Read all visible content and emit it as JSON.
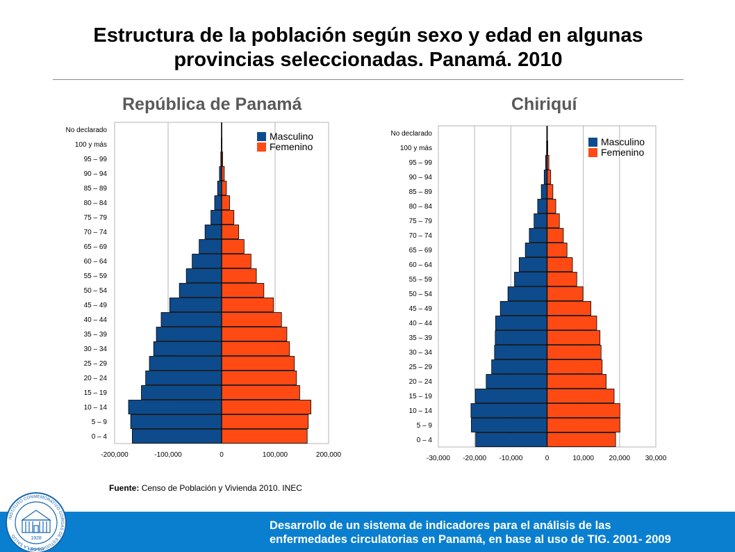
{
  "slide": {
    "title_line1": "Estructura de la población según sexo y edad en algunas",
    "title_line2": "provincias seleccionadas. Panamá. 2010"
  },
  "source": {
    "label": "Fuente:",
    "text": "Censo de Población y Vivienda  2010. INEC"
  },
  "footer": {
    "line1": "Desarrollo de un sistema de indicadores para el análisis de las",
    "line2": "enfermedades circulatorias en Panamá, en base al uso de TIG. 2001- 2009"
  },
  "logo": {
    "ring_text": "INSTITUTO CONMEMORATIVO GORGAS DE ESTUDIOS DE LA SALUD",
    "year": "1928",
    "place": "PANAMA"
  },
  "colors": {
    "male": "#0d4b8c",
    "female": "#ff4a14",
    "footer": "#0a7fd0",
    "chart_title": "#595959"
  },
  "chart_data": [
    {
      "type": "bar",
      "orientation": "horizontal",
      "title": "República de Panamá",
      "categories": [
        "No declarado",
        "100 y más",
        "95 – 99",
        "90 – 94",
        "85 – 89",
        "80 – 84",
        "75 – 79",
        "70 – 74",
        "65 – 69",
        "60 – 64",
        "55 – 59",
        "50 – 54",
        "45 – 49",
        "40 – 44",
        "35 – 39",
        "30 – 34",
        "25 – 29",
        "20 – 24",
        "15 – 19",
        "10 – 14",
        "5 – 9",
        "0 – 4"
      ],
      "series": [
        {
          "name": "Masculino",
          "values": [
            -500,
            -600,
            -1500,
            -4000,
            -7500,
            -13000,
            -20000,
            -31000,
            -42000,
            -55000,
            -66000,
            -79000,
            -97000,
            -113000,
            -122000,
            -127000,
            -135000,
            -142000,
            -150000,
            -174000,
            -170000,
            -167000
          ]
        },
        {
          "name": "Femenino",
          "values": [
            500,
            700,
            2000,
            5000,
            9000,
            15000,
            23000,
            32000,
            42000,
            55000,
            65000,
            79000,
            97000,
            112000,
            122000,
            127000,
            136000,
            140000,
            146000,
            167000,
            162000,
            160000
          ]
        }
      ],
      "xlim": [
        -200000,
        200000
      ],
      "xticks": [
        -200000,
        -100000,
        0,
        100000,
        200000
      ],
      "xtick_labels": [
        "-200,000",
        "-100,000",
        "0",
        "100,000",
        "200,000"
      ],
      "grid": true,
      "legend_position": "top-right"
    },
    {
      "type": "bar",
      "orientation": "horizontal",
      "title": "Chiriquí",
      "categories": [
        "No declarado",
        "100 y más",
        "95 – 99",
        "90 – 94",
        "85 – 89",
        "80 – 84",
        "75 – 79",
        "70 – 74",
        "65 – 69",
        "60 – 64",
        "55 – 59",
        "50 – 54",
        "45 – 49",
        "40 – 44",
        "35 – 39",
        "30 – 34",
        "25 – 29",
        "20 – 24",
        "15 – 19",
        "10 – 14",
        "5 – 9",
        "0 – 4"
      ],
      "series": [
        {
          "name": "Masculino",
          "values": [
            -100,
            -150,
            -400,
            -800,
            -1600,
            -2600,
            -3600,
            -4900,
            -6000,
            -7700,
            -9000,
            -10800,
            -12900,
            -14200,
            -14300,
            -14500,
            -15300,
            -16800,
            -19800,
            -21000,
            -20900,
            -19700
          ]
        },
        {
          "name": "Femenino",
          "values": [
            100,
            200,
            500,
            1000,
            1600,
            2400,
            3400,
            4500,
            5500,
            7000,
            8200,
            9900,
            12100,
            13700,
            14600,
            14900,
            15200,
            16300,
            18500,
            20100,
            20100,
            18900
          ]
        }
      ],
      "xlim": [
        -30000,
        30000
      ],
      "xticks": [
        -30000,
        -20000,
        -10000,
        0,
        10000,
        20000,
        30000
      ],
      "xtick_labels": [
        "-30,000",
        "-20,000",
        "-10,000",
        "0",
        "10,000",
        "20,000",
        "30,000"
      ],
      "grid": true,
      "legend_position": "top-right"
    }
  ]
}
